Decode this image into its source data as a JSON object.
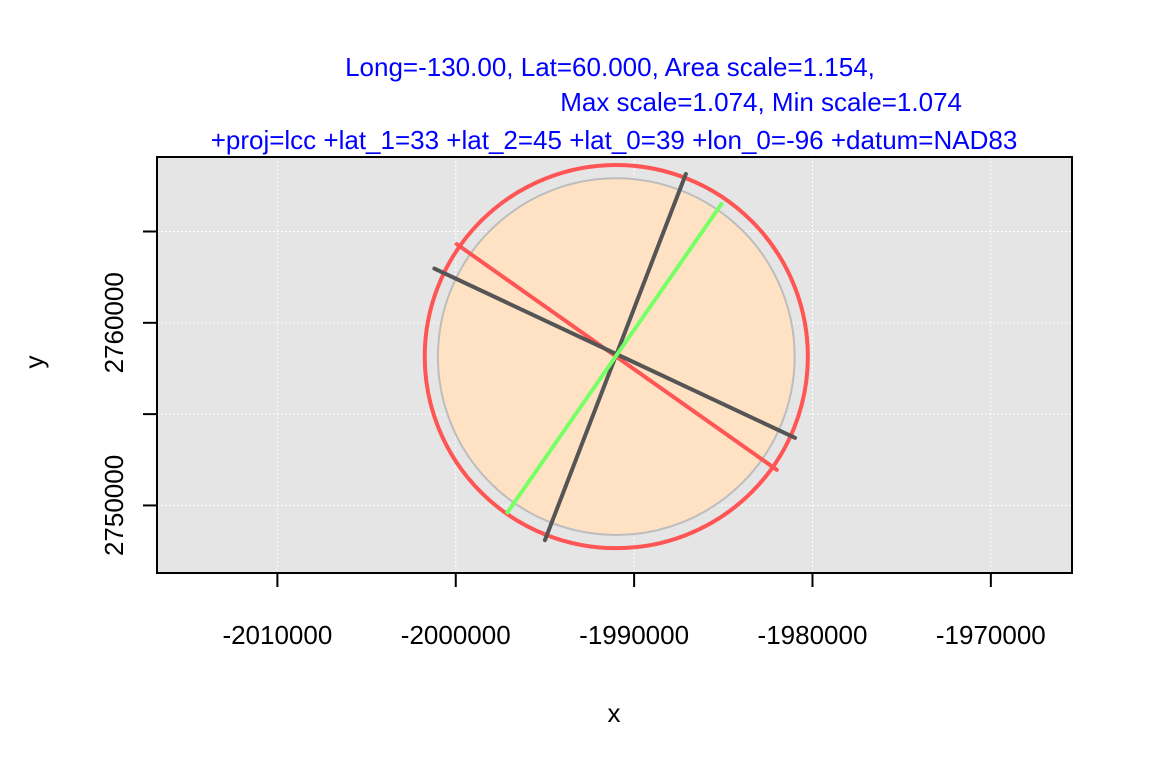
{
  "chart_data": {
    "type": "scatter",
    "title_lines": [
      "Long=-130.00, Lat=60.000, Area scale=1.154,",
      "Max scale=1.074, Min scale=1.074",
      "+proj=lcc +lat_1=33 +lat_2=45 +lat_0=39 +lon_0=-96 +datum=NAD83"
    ],
    "xlabel": "x",
    "ylabel": "y",
    "xlim": [
      -2016750,
      -1965450
    ],
    "ylim": [
      2746300,
      2769080
    ],
    "x_ticks": [
      -2010000,
      -2000000,
      -1990000,
      -1980000,
      -1970000
    ],
    "x_tick_labels": [
      "-2010000",
      "-2000000",
      "-1990000",
      "-1980000",
      "-1970000"
    ],
    "y_ticks": [
      2750000,
      2760000
    ],
    "y_tick_labels": [
      "2750000",
      "2760000"
    ],
    "y_tick_marks": [
      2750000,
      2755000,
      2760000,
      2765000
    ],
    "grid": true,
    "grid_x": [
      -2010000,
      -2000000,
      -1990000,
      -1980000,
      -1970000
    ],
    "grid_y": [
      2750000,
      2755000,
      2760000,
      2765000
    ],
    "center": [
      -1991000,
      2758150
    ],
    "reference_circle_radius": 10000,
    "indicatrix_radius": 10740,
    "axis_segments": [
      {
        "name": "max-axis-1",
        "color": "#ff5555",
        "from": [
          -1999950,
          2764310
        ],
        "to": [
          -1982000,
          2751950
        ]
      },
      {
        "name": "max-axis-2",
        "color": "#555555",
        "from": [
          -2001200,
          2762970
        ],
        "to": [
          -1980980,
          2753700
        ]
      },
      {
        "name": "meridian-line",
        "color": "#555555",
        "from": [
          -1995000,
          2748100
        ],
        "to": [
          -1987100,
          2768150
        ]
      },
      {
        "name": "parallel-line",
        "color": "#77ff66",
        "from": [
          -1997100,
          2749620
        ],
        "to": [
          -1985100,
          2766510
        ]
      }
    ],
    "colors": {
      "title": "#0000ff",
      "panel_background": "#e5e5e5",
      "grid": "#ffffff",
      "reference_fill": "#ffe2c4",
      "reference_stroke": "#bdbdbd",
      "indicatrix_stroke": "#ff5555"
    }
  }
}
